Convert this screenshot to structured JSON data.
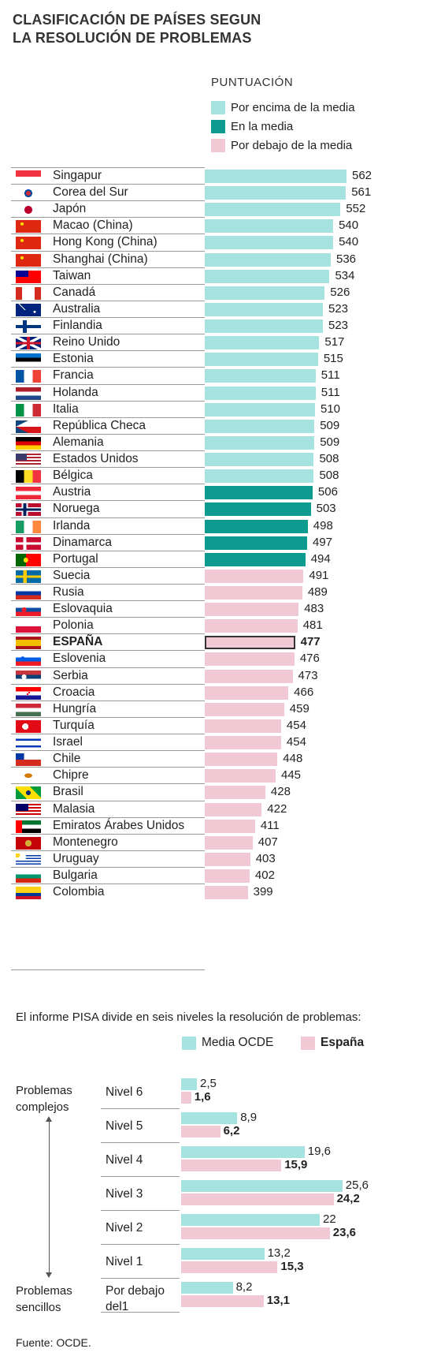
{
  "title_line1": "CLASIFICACIÓN DE PAÍSES SEGUN",
  "title_line2": "LA RESOLUCIÓN DE PROBLEMAS",
  "legend": {
    "title": "PUNTUACIÓN",
    "items": [
      {
        "label": "Por encima de la media",
        "color": "#a6e3e0"
      },
      {
        "label": "En la media",
        "color": "#0d9b8f"
      },
      {
        "label": "Por debajo de la media",
        "color": "#f0c9d5"
      }
    ]
  },
  "colors": {
    "above": "#a6e3e0",
    "average": "#0d9b8f",
    "below": "#f0c9d5",
    "rule": "#9a9a9a"
  },
  "chart_data": [
    {
      "type": "bar",
      "title": "CLASIFICACIÓN DE PAÍSES SEGUN LA RESOLUCIÓN DE PROBLEMAS",
      "orientation": "horizontal",
      "legend_title": "PUNTUACIÓN",
      "categories": [
        "Singapur",
        "Corea del Sur",
        "Japón",
        "Macao (China)",
        "Hong Kong (China)",
        "Shanghai (China)",
        "Taiwan",
        "Canadá",
        "Australia",
        "Finlandia",
        "Reino Unido",
        "Estonia",
        "Francia",
        "Holanda",
        "Italia",
        "República Checa",
        "Alemania",
        "Estados Unidos",
        "Bélgica",
        "Austria",
        "Noruega",
        "Irlanda",
        "Dinamarca",
        "Portugal",
        "Suecia",
        "Rusia",
        "Eslovaquia",
        "Polonia",
        "ESPAÑA",
        "Eslovenia",
        "Serbia",
        "Croacia",
        "Hungría",
        "Turquía",
        "Israel",
        "Chile",
        "Chipre",
        "Brasil",
        "Malasia",
        "Emiratos Árabes Unidos",
        "Montenegro",
        "Uruguay",
        "Bulgaria",
        "Colombia"
      ],
      "values": [
        562,
        561,
        552,
        540,
        540,
        536,
        534,
        526,
        523,
        523,
        517,
        515,
        511,
        511,
        510,
        509,
        509,
        508,
        508,
        506,
        503,
        498,
        497,
        494,
        491,
        489,
        483,
        481,
        477,
        476,
        473,
        466,
        459,
        454,
        454,
        448,
        445,
        428,
        422,
        411,
        407,
        403,
        402,
        399
      ],
      "groups": [
        "above",
        "above",
        "above",
        "above",
        "above",
        "above",
        "above",
        "above",
        "above",
        "above",
        "above",
        "above",
        "above",
        "above",
        "above",
        "above",
        "above",
        "above",
        "above",
        "average",
        "average",
        "average",
        "average",
        "average",
        "below",
        "below",
        "below",
        "below",
        "below",
        "below",
        "below",
        "below",
        "below",
        "below",
        "below",
        "below",
        "below",
        "below",
        "below",
        "below",
        "below",
        "below",
        "below",
        "below"
      ],
      "flags": [
        "flag-singapore",
        "flag-south-korea",
        "flag-japan",
        "flag-macao",
        "flag-hong-kong",
        "flag-china",
        "flag-taiwan",
        "flag-canada",
        "flag-australia",
        "flag-finland",
        "flag-uk",
        "flag-estonia",
        "flag-france",
        "flag-netherlands",
        "flag-italy",
        "flag-czech-republic",
        "flag-germany",
        "flag-usa",
        "flag-belgium",
        "flag-austria",
        "flag-norway",
        "flag-ireland",
        "flag-denmark",
        "flag-portugal",
        "flag-sweden",
        "flag-russia",
        "flag-slovakia",
        "flag-poland",
        "flag-spain",
        "flag-slovenia",
        "flag-serbia",
        "flag-croatia",
        "flag-hungary",
        "flag-turkey",
        "flag-israel",
        "flag-chile",
        "flag-cyprus",
        "flag-brazil",
        "flag-malaysia",
        "flag-uae",
        "flag-montenegro",
        "flag-uruguay",
        "flag-bulgaria",
        "flag-colombia"
      ],
      "highlight": "ESPAÑA",
      "series_labels": [
        "Por encima de la media",
        "En la media",
        "Por debajo de la media"
      ]
    },
    {
      "type": "bar",
      "orientation": "horizontal",
      "categories": [
        "Nivel 6",
        "Nivel 5",
        "Nivel 4",
        "Nivel 3",
        "Nivel 2",
        "Nivel 1",
        "Por debajo del1"
      ],
      "series": [
        {
          "name": "Media OCDE",
          "values": [
            2.5,
            8.9,
            19.6,
            25.6,
            22,
            13.2,
            8.2
          ],
          "labels": [
            "2,5",
            "8,9",
            "19,6",
            "25,6",
            "22",
            "13,2",
            "8,2"
          ],
          "color": "#a6e3e0"
        },
        {
          "name": "España",
          "values": [
            1.6,
            6.2,
            15.9,
            24.2,
            23.6,
            15.3,
            13.1
          ],
          "labels": [
            "1,6",
            "6,2",
            "15,9",
            "24,2",
            "23,6",
            "15,3",
            "13,1"
          ],
          "color": "#f0c9d5"
        }
      ]
    }
  ],
  "levels_intro": "El informe PISA divide en seis niveles la resolución de problemas:",
  "levels_legend": [
    {
      "label": "Media OCDE",
      "color": "#a6e3e0"
    },
    {
      "label": "España",
      "color": "#f0c9d5"
    }
  ],
  "levels": [
    {
      "line1": "Nivel 6",
      "line2": ""
    },
    {
      "line1": "Nivel 5",
      "line2": ""
    },
    {
      "line1": "Nivel 4",
      "line2": ""
    },
    {
      "line1": "Nivel 3",
      "line2": ""
    },
    {
      "line1": "Nivel 2",
      "line2": ""
    },
    {
      "line1": "Nivel 1",
      "line2": ""
    },
    {
      "line1": "Por debajo",
      "line2": "del1"
    }
  ],
  "side_top": {
    "line1": "Problemas",
    "line2": "complejos"
  },
  "side_bottom": {
    "line1": "Problemas",
    "line2": "sencillos"
  },
  "source": "Fuente: OCDE."
}
